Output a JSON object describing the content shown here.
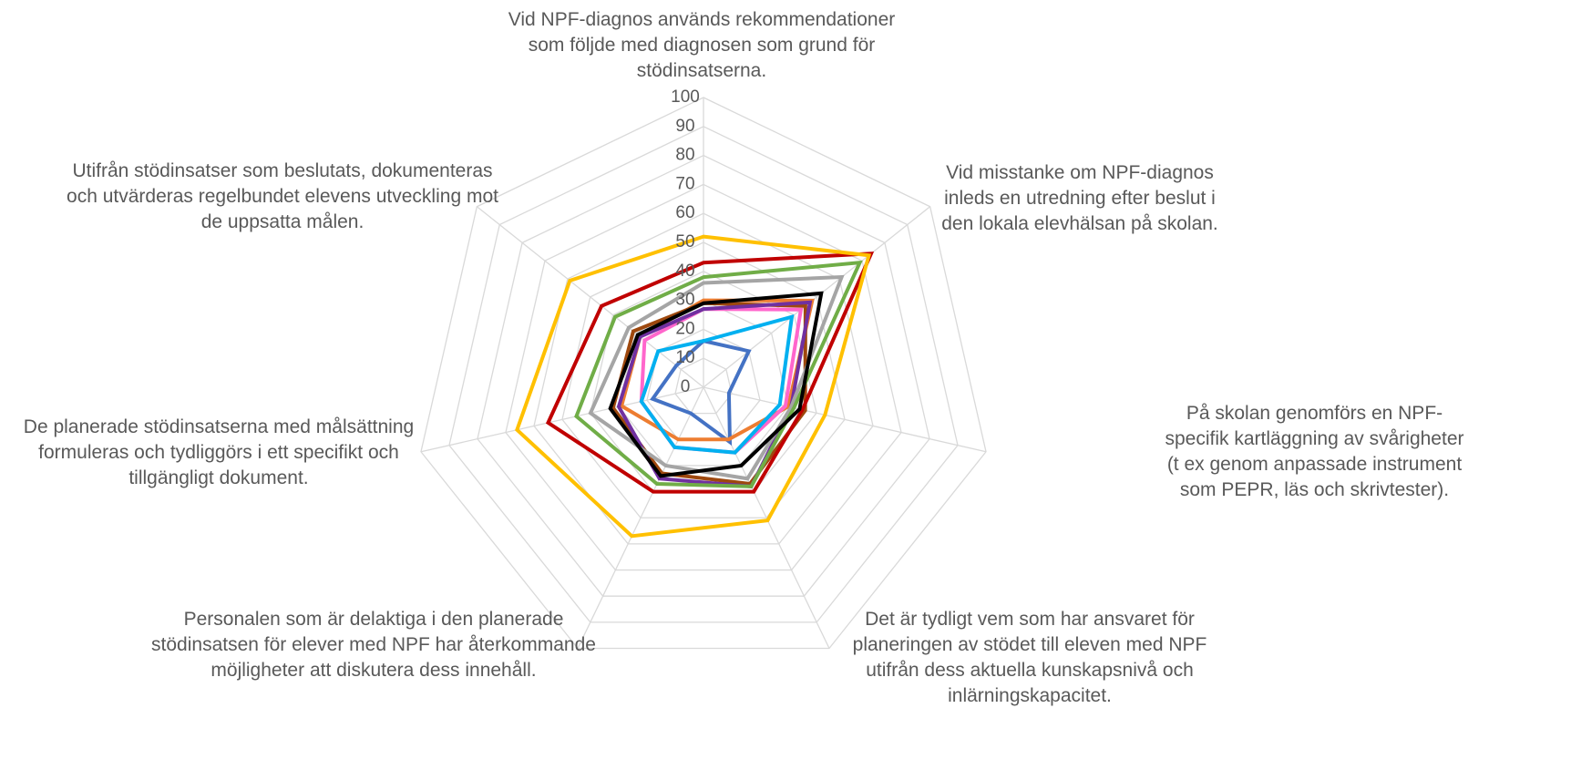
{
  "chart_data": {
    "type": "radar",
    "categories": [
      "Vid NPF-diagnos används rekommendationer som följde med diagnosen som grund för stödinsatserna.",
      "Vid misstanke om NPF-diagnos inleds en utredning efter beslut i den lokala elevhälsan på skolan.",
      "På skolan genomförs en NPF-specifik kartläggning av svårigheter (t ex genom anpassade instrument som PEPR, läs och skrivtester).",
      "Det är tydligt vem som har ansvaret för planeringen av stödet till eleven med NPF utifrån dess aktuella kunskapsnivå och inlärningskapacitet.",
      "Personalen som är delaktiga i den planerade stödinsatsen för elever med NPF har återkommande möjligheter att diskutera dess innehåll.",
      "De planerade stödinsatserna med målsättning formuleras och tydliggörs i ett specifikt och tillgängligt dokument.",
      "Utifrån stödinsatser som beslutats, dokumenteras och utvärderas regelbundet elevens utveckling mot de uppsatta målen."
    ],
    "series": [
      {
        "color": "#4472c4",
        "values": [
          16,
          20,
          9,
          21,
          10,
          18,
          12
        ]
      },
      {
        "color": "#ed7d31",
        "values": [
          30,
          48,
          30,
          20,
          20,
          29,
          28
        ]
      },
      {
        "color": "#ff66cc",
        "values": [
          27,
          43,
          29,
          25,
          23,
          22,
          26
        ]
      },
      {
        "color": "#00b0f0",
        "values": [
          16,
          39,
          27,
          25,
          23,
          22,
          20
        ]
      },
      {
        "color": "#9e480e",
        "values": [
          29,
          45,
          36,
          37,
          33,
          32,
          31
        ]
      },
      {
        "color": "#7030a0",
        "values": [
          27,
          47,
          31,
          38,
          35,
          30,
          28
        ]
      },
      {
        "color": "#a5a5a5",
        "values": [
          36,
          61,
          31,
          35,
          30,
          40,
          33
        ]
      },
      {
        "color": "#70ad47",
        "values": [
          38,
          69,
          32,
          38,
          37,
          45,
          39
        ]
      },
      {
        "color": "#c00000",
        "values": [
          43,
          74,
          35,
          40,
          40,
          55,
          45
        ]
      },
      {
        "color": "#000000",
        "values": [
          29,
          52,
          34,
          30,
          34,
          33,
          29
        ]
      },
      {
        "color": "#ffc000",
        "values": [
          52,
          73,
          43,
          51,
          57,
          66,
          59
        ]
      }
    ],
    "ylim": [
      0,
      100
    ],
    "yticks": [
      0,
      10,
      20,
      30,
      40,
      50,
      60,
      70,
      80,
      90,
      100
    ],
    "grid": true
  }
}
